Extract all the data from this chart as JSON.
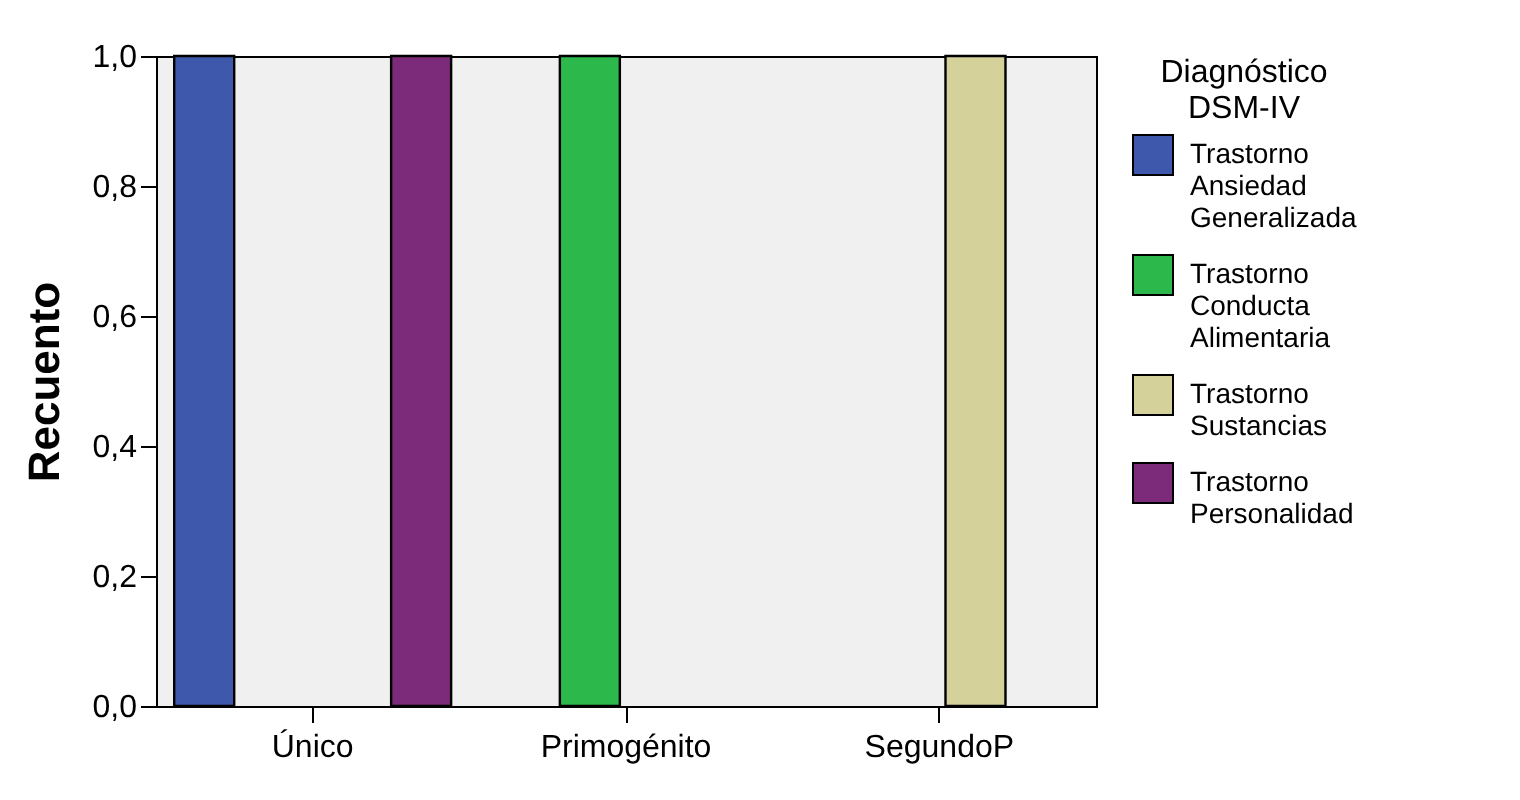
{
  "chart_data": {
    "type": "bar",
    "ylabel": "Recuento",
    "legend_title": "Diagnóstico DSM-IV",
    "categories": [
      "Único",
      "Primogénito",
      "SegundoP"
    ],
    "series": [
      {
        "name": "Trastorno Ansiedad Generalizada",
        "color": "#3e58ac",
        "values": [
          1,
          null,
          null
        ]
      },
      {
        "name": "Trastorno Conducta Alimentaria",
        "color": "#2db84b",
        "values": [
          null,
          1,
          null
        ]
      },
      {
        "name": "Trastorno Sustancias",
        "color": "#d4d19a",
        "values": [
          null,
          null,
          1
        ]
      },
      {
        "name": "Trastorno Personalidad",
        "color": "#7b2b7a",
        "values": [
          1,
          null,
          null
        ]
      }
    ],
    "ylim": [
      0,
      1
    ],
    "yticks": [
      {
        "value": 0,
        "label": "0,0"
      },
      {
        "value": 0.2,
        "label": "0,2"
      },
      {
        "value": 0.4,
        "label": "0,4"
      },
      {
        "value": 0.6,
        "label": "0,6"
      },
      {
        "value": 0.8,
        "label": "0,8"
      },
      {
        "value": 1,
        "label": "1,0"
      }
    ],
    "grid": false,
    "legend": "right"
  }
}
